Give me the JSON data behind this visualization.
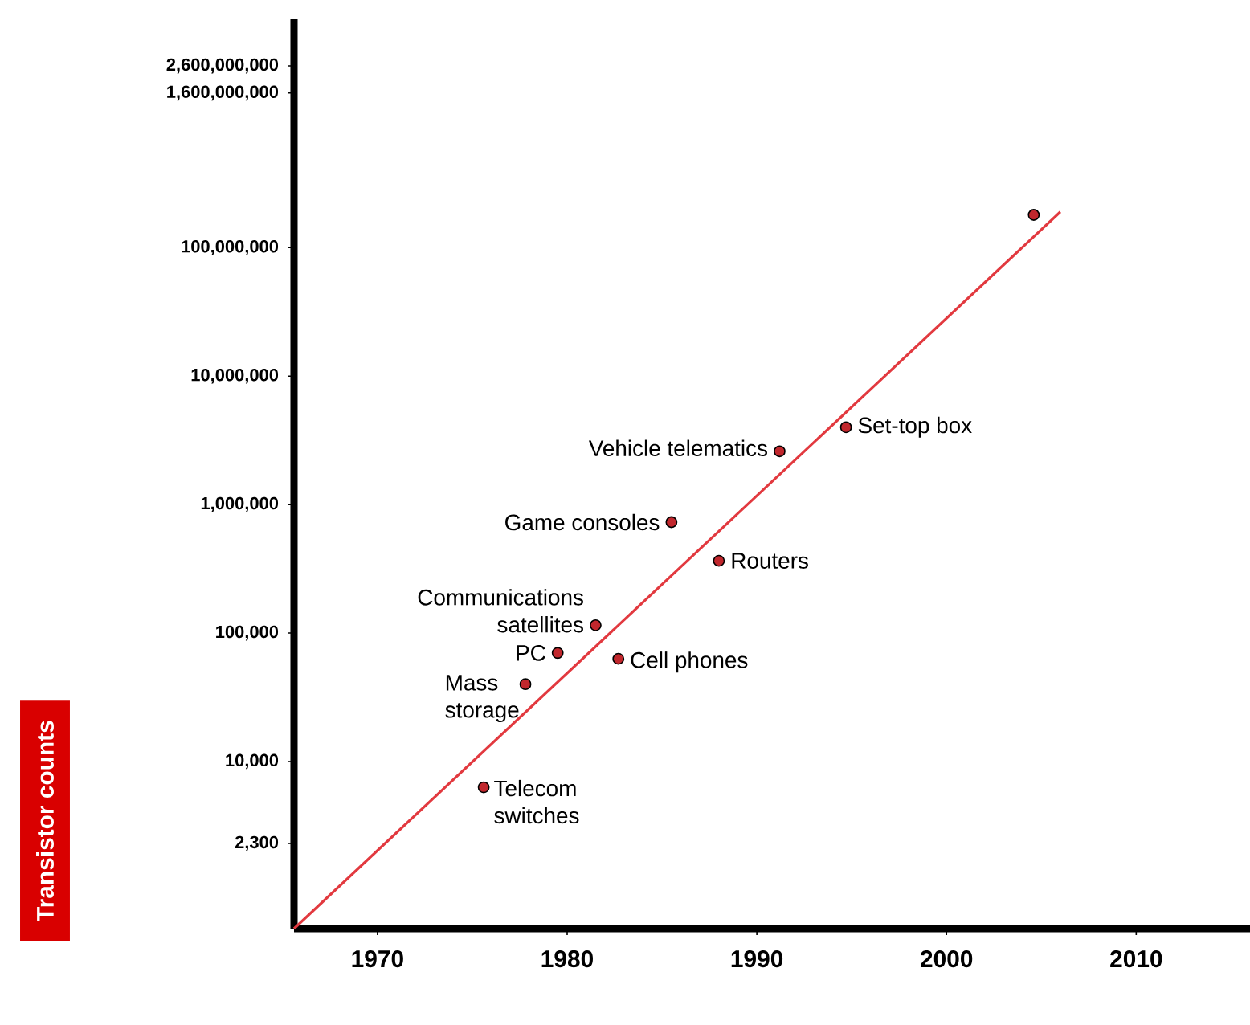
{
  "chart_data": {
    "type": "scatter",
    "ylabel": "Transistor counts",
    "log": "y",
    "xlim": [
      1965.6,
      2016
    ],
    "ylim": [
      500,
      6000000000
    ],
    "xticks": [
      1970,
      1980,
      1990,
      2000,
      2010
    ],
    "yticks": [
      {
        "value": 2300,
        "label": "2,300"
      },
      {
        "value": 10000,
        "label": "10,000"
      },
      {
        "value": 100000,
        "label": "100,000"
      },
      {
        "value": 1000000,
        "label": "1,000,000"
      },
      {
        "value": 10000000,
        "label": "10,000,000"
      },
      {
        "value": 100000000,
        "label": "100,000,000"
      },
      {
        "value": 1600000000,
        "label": "1,600,000,000"
      },
      {
        "value": 2600000000,
        "label": "2,600,000,000"
      }
    ],
    "series": [
      {
        "type": "line",
        "color": "#e2393f",
        "marker": "none",
        "x": [
          1965.6,
          2006
        ],
        "values": [
          500,
          190000000
        ]
      },
      {
        "type": "scatter",
        "color": "#c1272d",
        "marker": "circle",
        "x": [
          1975.6,
          1977.8,
          1979.5,
          1981.5,
          1982.7,
          1985.5,
          1988,
          1991.2,
          1994.7,
          2004.6
        ],
        "values": [
          6300,
          40000,
          70000,
          115000,
          63000,
          730000,
          365000,
          2600000,
          4000000,
          180000000
        ]
      }
    ],
    "annotations": [
      {
        "text": "Telecom switches",
        "x": 1975.6,
        "y": 6300
      },
      {
        "text": "Mass storage",
        "x": 1977.8,
        "y": 40000
      },
      {
        "text": "PC",
        "x": 1979.5,
        "y": 70000
      },
      {
        "text": "Communications satellites",
        "x": 1981.5,
        "y": 115000
      },
      {
        "text": "Cell phones",
        "x": 1982.7,
        "y": 63000
      },
      {
        "text": "Game consoles",
        "x": 1985.5,
        "y": 730000
      },
      {
        "text": "Routers",
        "x": 1988,
        "y": 365000
      },
      {
        "text": "Vehicle telematics",
        "x": 1991.2,
        "y": 2600000
      },
      {
        "text": "Set-top box",
        "x": 1994.7,
        "y": 4000000
      }
    ]
  }
}
